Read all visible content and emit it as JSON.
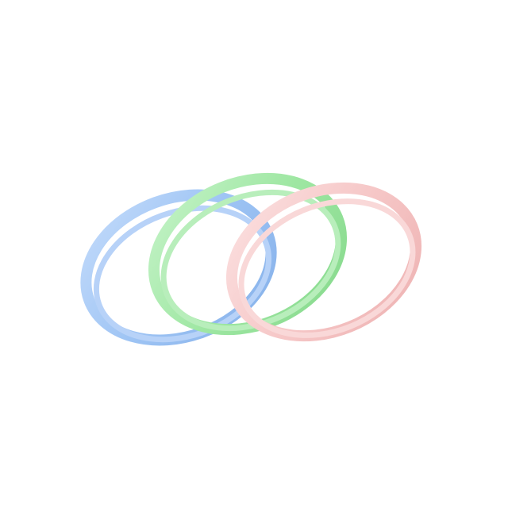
{
  "image": {
    "description_type": "product-photo",
    "background": "#ffffff",
    "bangles": [
      {
        "name": "blue",
        "color": "#9ec4f4",
        "highlight": "#c3dbfb",
        "shadow": "#86b1ea"
      },
      {
        "name": "green",
        "color": "#9fe7a3",
        "highlight": "#c5f3c8",
        "shadow": "#86d98c"
      },
      {
        "name": "pink",
        "color": "#f6c8c8",
        "highlight": "#fbe0e0",
        "shadow": "#eeb2b2"
      }
    ]
  }
}
